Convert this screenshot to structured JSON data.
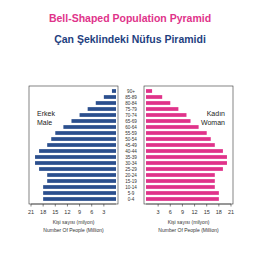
{
  "chart_data": {
    "type": "bar",
    "orientation": "horizontal",
    "title": "Bell-Shaped Population Pyramid",
    "subtitle": "Çan Şeklindeki Nüfus Piramidi",
    "x_label": "Kişi sayısı (milyon)",
    "x_label_en": "Number Of People (Million)",
    "categories": [
      "0-4",
      "5-9",
      "10-14",
      "15-19",
      "20-24",
      "25-29",
      "30-34",
      "35-39",
      "40-44",
      "45-49",
      "50-54",
      "55-59",
      "60-64",
      "65-69",
      "70-74",
      "75-79",
      "80-84",
      "85-89",
      "90+"
    ],
    "series": [
      {
        "name": "Male",
        "name_local": "Erkek",
        "color": "#2b4f8e",
        "values": [
          18,
          18,
          18,
          17,
          17,
          19,
          20,
          20,
          19,
          17,
          16,
          15,
          13,
          11,
          9,
          7,
          5,
          3,
          1
        ]
      },
      {
        "name": "Woman",
        "name_local": "Kadın",
        "color": "#e0338a",
        "values": [
          18,
          18,
          17,
          17,
          17,
          19,
          20,
          20,
          19,
          17,
          16,
          15,
          13,
          11,
          10,
          8,
          6,
          4,
          1.5
        ]
      }
    ],
    "xlim": [
      0,
      21
    ],
    "xticks": [
      3,
      6,
      9,
      12,
      15,
      18,
      21
    ],
    "grid": false
  }
}
